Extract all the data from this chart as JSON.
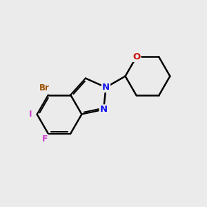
{
  "bg_color": "#ebebeb",
  "bond_color": "#000000",
  "bond_lw": 1.8,
  "dbl_lw": 1.5,
  "dbl_off": 0.072,
  "atom_colors": {
    "Br": "#9B5000",
    "I": "#cc44cc",
    "F": "#cc44cc",
    "N": "#1010ee",
    "O": "#cc1111"
  },
  "atom_fs": {
    "Br": 8.5,
    "I": 9.0,
    "F": 9.0,
    "N": 9.5,
    "O": 9.5
  },
  "BL": 1.08,
  "fig_bg": "#ebebeb",
  "xlim": [
    0,
    10
  ],
  "ylim": [
    0,
    10
  ]
}
